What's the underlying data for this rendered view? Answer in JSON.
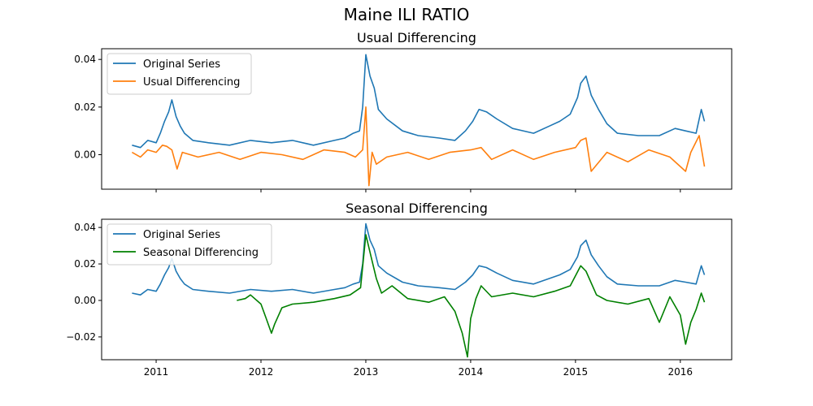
{
  "figure": {
    "title": "Maine ILI RATIO"
  },
  "colors": {
    "original": "#1f77b4",
    "usual": "#ff7f0e",
    "seasonal": "#008000"
  },
  "chart_data": [
    {
      "type": "line",
      "title": "Usual Differencing",
      "xlabel": "",
      "ylabel": "",
      "ylim": [
        -0.0145,
        0.0445
      ],
      "xlim": [
        2010.48,
        2016.49
      ],
      "grid": false,
      "legend": "top-left",
      "x_ticks": [
        2011,
        2012,
        2013,
        2014,
        2015,
        2016
      ],
      "x_tick_labels": [],
      "y_ticks": [
        0.0,
        0.02,
        0.04
      ],
      "y_tick_labels": [
        "0.00",
        "0.02",
        "0.04"
      ],
      "series": [
        {
          "name": "Original Series",
          "color": "#1f77b4",
          "x": [
            2010.77,
            2010.85,
            2010.92,
            2011.0,
            2011.04,
            2011.08,
            2011.12,
            2011.15,
            2011.19,
            2011.23,
            2011.27,
            2011.35,
            2011.5,
            2011.7,
            2011.9,
            2012.1,
            2012.3,
            2012.5,
            2012.7,
            2012.8,
            2012.88,
            2012.94,
            2012.97,
            2013.0,
            2013.04,
            2013.08,
            2013.12,
            2013.2,
            2013.35,
            2013.5,
            2013.7,
            2013.85,
            2013.95,
            2014.02,
            2014.08,
            2014.15,
            2014.25,
            2014.4,
            2014.6,
            2014.75,
            2014.85,
            2014.95,
            2015.02,
            2015.05,
            2015.1,
            2015.15,
            2015.22,
            2015.3,
            2015.4,
            2015.6,
            2015.8,
            2015.95,
            2016.05,
            2016.15,
            2016.2,
            2016.23
          ],
          "y": [
            0.004,
            0.003,
            0.006,
            0.005,
            0.009,
            0.014,
            0.018,
            0.023,
            0.016,
            0.012,
            0.009,
            0.006,
            0.005,
            0.004,
            0.006,
            0.005,
            0.006,
            0.004,
            0.006,
            0.007,
            0.009,
            0.01,
            0.02,
            0.042,
            0.033,
            0.028,
            0.019,
            0.015,
            0.01,
            0.008,
            0.007,
            0.006,
            0.01,
            0.014,
            0.019,
            0.018,
            0.015,
            0.011,
            0.009,
            0.012,
            0.014,
            0.017,
            0.024,
            0.03,
            0.033,
            0.025,
            0.019,
            0.013,
            0.009,
            0.008,
            0.008,
            0.011,
            0.01,
            0.009,
            0.019,
            0.014
          ]
        },
        {
          "name": "Usual Differencing",
          "color": "#ff7f0e",
          "x": [
            2010.77,
            2010.85,
            2010.92,
            2011.0,
            2011.06,
            2011.1,
            2011.15,
            2011.2,
            2011.25,
            2011.4,
            2011.6,
            2011.8,
            2012.0,
            2012.2,
            2012.4,
            2012.6,
            2012.8,
            2012.9,
            2012.97,
            2013.0,
            2013.03,
            2013.06,
            2013.1,
            2013.2,
            2013.4,
            2013.6,
            2013.8,
            2014.0,
            2014.1,
            2014.2,
            2014.4,
            2014.6,
            2014.8,
            2015.0,
            2015.05,
            2015.1,
            2015.15,
            2015.3,
            2015.5,
            2015.7,
            2015.9,
            2016.05,
            2016.1,
            2016.18,
            2016.23
          ],
          "y": [
            0.001,
            -0.001,
            0.002,
            0.001,
            0.004,
            0.0035,
            0.002,
            -0.006,
            0.001,
            -0.001,
            0.001,
            -0.002,
            0.001,
            0.0,
            -0.002,
            0.002,
            0.001,
            -0.001,
            0.002,
            0.02,
            -0.013,
            0.001,
            -0.004,
            -0.001,
            0.001,
            -0.002,
            0.001,
            0.002,
            0.003,
            -0.002,
            0.002,
            -0.002,
            0.001,
            0.003,
            0.006,
            0.007,
            -0.007,
            0.001,
            -0.003,
            0.002,
            -0.001,
            -0.007,
            0.001,
            0.008,
            -0.005
          ]
        }
      ]
    },
    {
      "type": "line",
      "title": "Seasonal Differencing",
      "xlabel": "",
      "ylabel": "",
      "ylim": [
        -0.0325,
        0.0445
      ],
      "xlim": [
        2010.48,
        2016.49
      ],
      "grid": false,
      "legend": "top-left",
      "x_ticks": [
        2011,
        2012,
        2013,
        2014,
        2015,
        2016
      ],
      "x_tick_labels": [
        "2011",
        "2012",
        "2013",
        "2014",
        "2015",
        "2016"
      ],
      "y_ticks": [
        -0.02,
        0.0,
        0.02,
        0.04
      ],
      "y_tick_labels": [
        "−0.02",
        "0.00",
        "0.02",
        "0.04"
      ],
      "series": [
        {
          "name": "Original Series",
          "color": "#1f77b4",
          "x": [
            2010.77,
            2010.85,
            2010.92,
            2011.0,
            2011.04,
            2011.08,
            2011.12,
            2011.15,
            2011.19,
            2011.23,
            2011.27,
            2011.35,
            2011.5,
            2011.7,
            2011.9,
            2012.1,
            2012.3,
            2012.5,
            2012.7,
            2012.8,
            2012.88,
            2012.94,
            2012.97,
            2013.0,
            2013.04,
            2013.08,
            2013.12,
            2013.2,
            2013.35,
            2013.5,
            2013.7,
            2013.85,
            2013.95,
            2014.02,
            2014.08,
            2014.15,
            2014.25,
            2014.4,
            2014.6,
            2014.75,
            2014.85,
            2014.95,
            2015.02,
            2015.05,
            2015.1,
            2015.15,
            2015.22,
            2015.3,
            2015.4,
            2015.6,
            2015.8,
            2015.95,
            2016.05,
            2016.15,
            2016.2,
            2016.23
          ],
          "y": [
            0.004,
            0.003,
            0.006,
            0.005,
            0.009,
            0.014,
            0.018,
            0.023,
            0.016,
            0.012,
            0.009,
            0.006,
            0.005,
            0.004,
            0.006,
            0.005,
            0.006,
            0.004,
            0.006,
            0.007,
            0.009,
            0.01,
            0.02,
            0.042,
            0.033,
            0.028,
            0.019,
            0.015,
            0.01,
            0.008,
            0.007,
            0.006,
            0.01,
            0.014,
            0.019,
            0.018,
            0.015,
            0.011,
            0.009,
            0.012,
            0.014,
            0.017,
            0.024,
            0.03,
            0.033,
            0.025,
            0.019,
            0.013,
            0.009,
            0.008,
            0.008,
            0.011,
            0.01,
            0.009,
            0.019,
            0.014
          ]
        },
        {
          "name": "Seasonal Differencing",
          "color": "#008000",
          "x": [
            2011.77,
            2011.85,
            2011.9,
            2012.0,
            2012.05,
            2012.1,
            2012.13,
            2012.2,
            2012.3,
            2012.5,
            2012.7,
            2012.85,
            2012.95,
            2013.0,
            2013.05,
            2013.1,
            2013.15,
            2013.25,
            2013.4,
            2013.6,
            2013.75,
            2013.85,
            2013.92,
            2013.97,
            2014.0,
            2014.05,
            2014.1,
            2014.2,
            2014.4,
            2014.6,
            2014.8,
            2014.95,
            2015.05,
            2015.1,
            2015.2,
            2015.3,
            2015.5,
            2015.7,
            2015.8,
            2015.9,
            2016.0,
            2016.05,
            2016.1,
            2016.15,
            2016.2,
            2016.23
          ],
          "y": [
            0.0,
            0.001,
            0.003,
            -0.002,
            -0.01,
            -0.018,
            -0.013,
            -0.004,
            -0.002,
            -0.001,
            0.001,
            0.003,
            0.007,
            0.036,
            0.024,
            0.012,
            0.004,
            0.008,
            0.001,
            -0.001,
            0.002,
            -0.006,
            -0.018,
            -0.031,
            -0.01,
            0.001,
            0.008,
            0.002,
            0.004,
            0.002,
            0.005,
            0.008,
            0.019,
            0.016,
            0.003,
            0.0,
            -0.002,
            0.001,
            -0.012,
            0.002,
            -0.008,
            -0.024,
            -0.012,
            -0.005,
            0.004,
            -0.001
          ]
        }
      ]
    }
  ]
}
